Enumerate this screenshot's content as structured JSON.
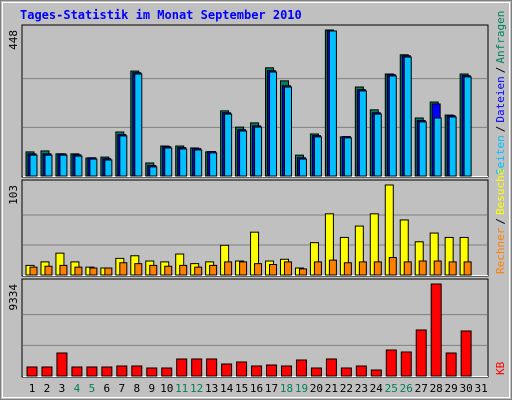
{
  "chart_data": {
    "type": "bar",
    "title": "Tages-Statistik im Monat September 2010",
    "legend_separator": "/",
    "categories": [
      "1",
      "2",
      "3",
      "4",
      "5",
      "6",
      "7",
      "8",
      "9",
      "10",
      "11",
      "12",
      "13",
      "14",
      "15",
      "16",
      "17",
      "18",
      "19",
      "20",
      "21",
      "22",
      "23",
      "24",
      "25",
      "26",
      "27",
      "28",
      "29",
      "30",
      "31"
    ],
    "category_colors": [
      "#000000",
      "#000000",
      "#000000",
      "#00805c",
      "#00805c",
      "#000000",
      "#000000",
      "#000000",
      "#000000",
      "#000000",
      "#00805c",
      "#00805c",
      "#000000",
      "#000000",
      "#000000",
      "#000000",
      "#000000",
      "#00805c",
      "#00805c",
      "#000000",
      "#000000",
      "#000000",
      "#000000",
      "#000000",
      "#00805c",
      "#00805c",
      "#000000",
      "#000000",
      "#000000",
      "#000000",
      "#000000"
    ],
    "panels": [
      {
        "ylim": [
          0,
          448
        ],
        "yticks": [
          448
        ],
        "series": [
          {
            "name": "Anfragen",
            "color": "#00805c",
            "values": [
              74,
              77,
              68,
              68,
              55,
              58,
              135,
              322,
              40,
              92,
              92,
              86,
              74,
              200,
              150,
              163,
              332,
              292,
              64,
              129,
              448,
              120,
              273,
              203,
              313,
              372,
              178,
              227,
              187,
              313,
              null
            ]
          },
          {
            "name": "Dateien",
            "color": "#0000ff",
            "values": [
              68,
              68,
              68,
              65,
              56,
              53,
              127,
              317,
              32,
              90,
              87,
              84,
              75,
              194,
              142,
              154,
              323,
              277,
              56,
              124,
              445,
              121,
              265,
              194,
              311,
              369,
              170,
              221,
              185,
              308,
              null
            ]
          },
          {
            "name": "Seiten",
            "color": "#00c0ff",
            "values": [
              64,
              64,
              64,
              61,
              52,
              49,
              123,
              313,
              28,
              86,
              83,
              80,
              71,
              190,
              138,
              150,
              319,
              273,
              52,
              120,
              445,
              117,
              261,
              190,
              307,
              365,
              166,
              178,
              181,
              304,
              null
            ]
          }
        ]
      },
      {
        "ylim": [
          0,
          103
        ],
        "yticks": [
          103
        ],
        "series": [
          {
            "name": "Besuche",
            "color": "#ffff00",
            "values": [
              11,
              15,
              25,
              15,
              9,
              8,
              19,
              22,
              16,
              15,
              24,
              13,
              15,
              34,
              16,
              49,
              16,
              18,
              8,
              37,
              70,
              43,
              56,
              70,
              103,
              63,
              38,
              48,
              43,
              43,
              null
            ]
          },
          {
            "name": "Rechner",
            "color": "#ff8000",
            "values": [
              9,
              10,
              11,
              9,
              8,
              8,
              14,
              13,
              11,
              10,
              11,
              9,
              11,
              15,
              15,
              13,
              12,
              15,
              7,
              15,
              17,
              14,
              15,
              15,
              20,
              15,
              16,
              16,
              15,
              15,
              null
            ]
          }
        ]
      },
      {
        "ylim": [
          0,
          9334
        ],
        "yticks": [
          9334
        ],
        "series": [
          {
            "name": "KB",
            "color": "#ff0000",
            "values": [
              914,
              914,
              2335,
              914,
              914,
              914,
              1015,
              1015,
              812,
              812,
              1726,
              1726,
              1726,
              1218,
              1421,
              1015,
              1117,
              1015,
              1624,
              812,
              1726,
              812,
              1015,
              609,
              2639,
              2436,
              4669,
              9334,
              2335,
              4568,
              null
            ]
          }
        ]
      }
    ]
  }
}
